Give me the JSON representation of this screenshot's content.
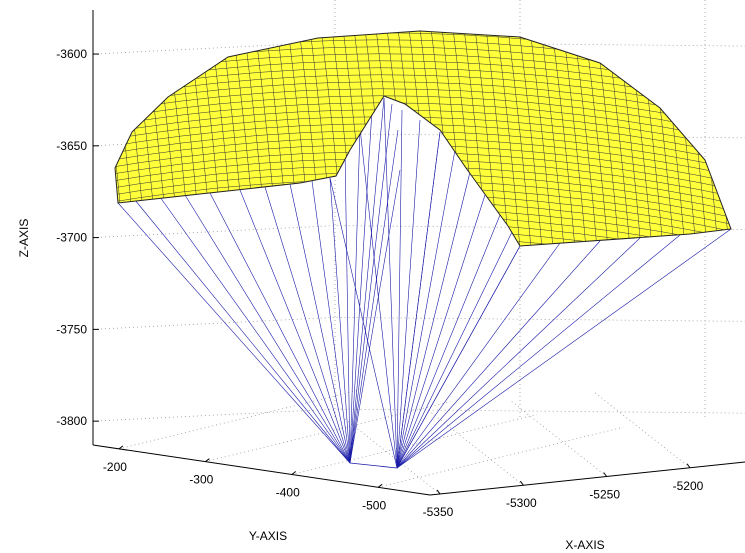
{
  "chart_data": {
    "type": "surface3d",
    "xlabel": "X-AXIS",
    "ylabel": "Y-AXIS",
    "zlabel": "Z-AXIS",
    "xlim": [
      -5356,
      -5167
    ],
    "xticks": [
      -5350,
      -5300,
      -5250,
      -5200
    ],
    "ylim": [
      -170,
      -560
    ],
    "yticks": [
      -200,
      -300,
      -400,
      -500
    ],
    "zlim": [
      -3576,
      -3813
    ],
    "zticks": [
      -3600,
      -3650,
      -3700,
      -3750,
      -3800
    ],
    "grid": true,
    "surface_color": "#ffff3a",
    "line_color": "#1a1aa8"
  }
}
